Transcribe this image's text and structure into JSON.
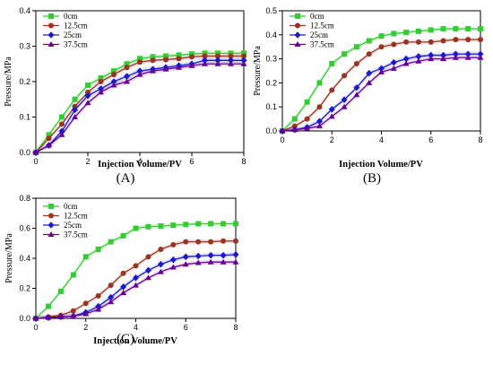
{
  "chart_data": [
    {
      "type": "line",
      "panel_label": "(A)",
      "xlabel": "Injection Volume/PV",
      "ylabel": "Pressure/MPa",
      "xlim": [
        0,
        8
      ],
      "ylim": [
        0,
        0.4
      ],
      "xticks": [
        "0",
        "2",
        "4",
        "6",
        "8"
      ],
      "yticks": [
        "0.0",
        "0.1",
        "0.2",
        "0.3",
        "0.4"
      ],
      "grid": false,
      "legend": "top-left",
      "series": [
        {
          "name": "0cm",
          "color": "#33cc33",
          "marker": "square",
          "x": [
            0,
            0.5,
            1,
            1.5,
            2,
            2.5,
            3,
            3.5,
            4,
            4.5,
            5,
            5.5,
            6,
            6.5,
            7,
            7.5,
            8
          ],
          "y": [
            0,
            0.05,
            0.1,
            0.15,
            0.19,
            0.21,
            0.23,
            0.25,
            0.265,
            0.27,
            0.272,
            0.275,
            0.278,
            0.28,
            0.28,
            0.28,
            0.28
          ]
        },
        {
          "name": "12.5cm",
          "color": "#993322",
          "marker": "circle",
          "x": [
            0,
            0.5,
            1,
            1.5,
            2,
            2.5,
            3,
            3.5,
            4,
            4.5,
            5,
            5.5,
            6,
            6.5,
            7,
            7.5,
            8
          ],
          "y": [
            0,
            0.04,
            0.08,
            0.13,
            0.17,
            0.2,
            0.22,
            0.24,
            0.255,
            0.26,
            0.262,
            0.265,
            0.27,
            0.272,
            0.272,
            0.272,
            0.272
          ]
        },
        {
          "name": "25cm",
          "color": "#1a1acc",
          "marker": "diamond",
          "x": [
            0,
            0.5,
            1,
            1.5,
            2,
            2.5,
            3,
            3.5,
            4,
            4.5,
            5,
            5.5,
            6,
            6.5,
            7,
            7.5,
            8
          ],
          "y": [
            0,
            0.02,
            0.06,
            0.12,
            0.16,
            0.18,
            0.2,
            0.215,
            0.23,
            0.235,
            0.24,
            0.245,
            0.25,
            0.26,
            0.26,
            0.26,
            0.26
          ]
        },
        {
          "name": "37.5cm",
          "color": "#660099",
          "marker": "triangle",
          "x": [
            0,
            0.5,
            1,
            1.5,
            2,
            2.5,
            3,
            3.5,
            4,
            4.5,
            5,
            5.5,
            6,
            6.5,
            7,
            7.5,
            8
          ],
          "y": [
            0,
            0.02,
            0.05,
            0.1,
            0.14,
            0.17,
            0.19,
            0.2,
            0.22,
            0.23,
            0.235,
            0.24,
            0.245,
            0.25,
            0.25,
            0.25,
            0.25
          ]
        }
      ]
    },
    {
      "type": "line",
      "panel_label": "(B)",
      "xlabel": "Injection Volume/PV",
      "ylabel": "Pressure/MPa",
      "xlim": [
        0,
        8
      ],
      "ylim": [
        0,
        0.5
      ],
      "xticks": [
        "0",
        "2",
        "4",
        "6",
        "8"
      ],
      "yticks": [
        "0.0",
        "0.1",
        "0.2",
        "0.3",
        "0.4",
        "0.5"
      ],
      "grid": false,
      "legend": "top-left",
      "series": [
        {
          "name": "0cm",
          "color": "#33cc33",
          "marker": "square",
          "x": [
            0,
            0.5,
            1,
            1.5,
            2,
            2.5,
            3,
            3.5,
            4,
            4.5,
            5,
            5.5,
            6,
            6.5,
            7,
            7.5,
            8
          ],
          "y": [
            0,
            0.05,
            0.12,
            0.2,
            0.28,
            0.32,
            0.35,
            0.375,
            0.395,
            0.405,
            0.41,
            0.415,
            0.42,
            0.425,
            0.425,
            0.425,
            0.425
          ]
        },
        {
          "name": "12.5cm",
          "color": "#993322",
          "marker": "circle",
          "x": [
            0,
            0.5,
            1,
            1.5,
            2,
            2.5,
            3,
            3.5,
            4,
            4.5,
            5,
            5.5,
            6,
            6.5,
            7,
            7.5,
            8
          ],
          "y": [
            0,
            0.02,
            0.05,
            0.1,
            0.17,
            0.23,
            0.28,
            0.32,
            0.35,
            0.36,
            0.37,
            0.37,
            0.37,
            0.375,
            0.38,
            0.38,
            0.38
          ]
        },
        {
          "name": "25cm",
          "color": "#1a1acc",
          "marker": "diamond",
          "x": [
            0,
            0.5,
            1,
            1.5,
            2,
            2.5,
            3,
            3.5,
            4,
            4.5,
            5,
            5.5,
            6,
            6.5,
            7,
            7.5,
            8
          ],
          "y": [
            0,
            0.005,
            0.015,
            0.04,
            0.09,
            0.13,
            0.18,
            0.24,
            0.26,
            0.285,
            0.3,
            0.31,
            0.315,
            0.315,
            0.32,
            0.32,
            0.32
          ]
        },
        {
          "name": "37.5cm",
          "color": "#660099",
          "marker": "triangle",
          "x": [
            0,
            0.5,
            1,
            1.5,
            2,
            2.5,
            3,
            3.5,
            4,
            4.5,
            5,
            5.5,
            6,
            6.5,
            7,
            7.5,
            8
          ],
          "y": [
            0,
            0.005,
            0.01,
            0.02,
            0.06,
            0.1,
            0.15,
            0.2,
            0.245,
            0.26,
            0.28,
            0.29,
            0.3,
            0.3,
            0.305,
            0.305,
            0.305
          ]
        }
      ]
    },
    {
      "type": "line",
      "panel_label": "(C)",
      "xlabel": "Injection Volume/PV",
      "ylabel": "Pressure/MPa",
      "xlim": [
        0,
        8
      ],
      "ylim": [
        0,
        0.8
      ],
      "xticks": [
        "0",
        "2",
        "4",
        "6",
        "8"
      ],
      "yticks": [
        "0.0",
        "0.2",
        "0.4",
        "0.6",
        "0.8"
      ],
      "grid": false,
      "legend": "top-left",
      "series": [
        {
          "name": "0cm",
          "color": "#33cc33",
          "marker": "square",
          "x": [
            0,
            0.5,
            1,
            1.5,
            2,
            2.5,
            3,
            3.5,
            4,
            4.5,
            5,
            5.5,
            6,
            6.5,
            7,
            7.5,
            8
          ],
          "y": [
            0,
            0.08,
            0.18,
            0.29,
            0.41,
            0.46,
            0.51,
            0.55,
            0.6,
            0.61,
            0.615,
            0.62,
            0.625,
            0.63,
            0.63,
            0.63,
            0.63
          ]
        },
        {
          "name": "12.5cm",
          "color": "#993322",
          "marker": "circle",
          "x": [
            0,
            0.5,
            1,
            1.5,
            2,
            2.5,
            3,
            3.5,
            4,
            4.5,
            5,
            5.5,
            6,
            6.5,
            7,
            7.5,
            8
          ],
          "y": [
            0,
            0.01,
            0.02,
            0.05,
            0.1,
            0.15,
            0.22,
            0.3,
            0.35,
            0.41,
            0.46,
            0.49,
            0.51,
            0.51,
            0.51,
            0.515,
            0.515
          ]
        },
        {
          "name": "25cm",
          "color": "#1a1acc",
          "marker": "diamond",
          "x": [
            0,
            0.5,
            1,
            1.5,
            2,
            2.5,
            3,
            3.5,
            4,
            4.5,
            5,
            5.5,
            6,
            6.5,
            7,
            7.5,
            8
          ],
          "y": [
            0,
            0.005,
            0.01,
            0.015,
            0.04,
            0.08,
            0.14,
            0.21,
            0.27,
            0.32,
            0.36,
            0.39,
            0.41,
            0.415,
            0.42,
            0.42,
            0.425
          ]
        },
        {
          "name": "37.5cm",
          "color": "#660099",
          "marker": "triangle",
          "x": [
            0,
            0.5,
            1,
            1.5,
            2,
            2.5,
            3,
            3.5,
            4,
            4.5,
            5,
            5.5,
            6,
            6.5,
            7,
            7.5,
            8
          ],
          "y": [
            0,
            0.005,
            0.01,
            0.015,
            0.03,
            0.06,
            0.11,
            0.17,
            0.22,
            0.27,
            0.31,
            0.34,
            0.36,
            0.37,
            0.375,
            0.375,
            0.375
          ]
        }
      ]
    }
  ]
}
